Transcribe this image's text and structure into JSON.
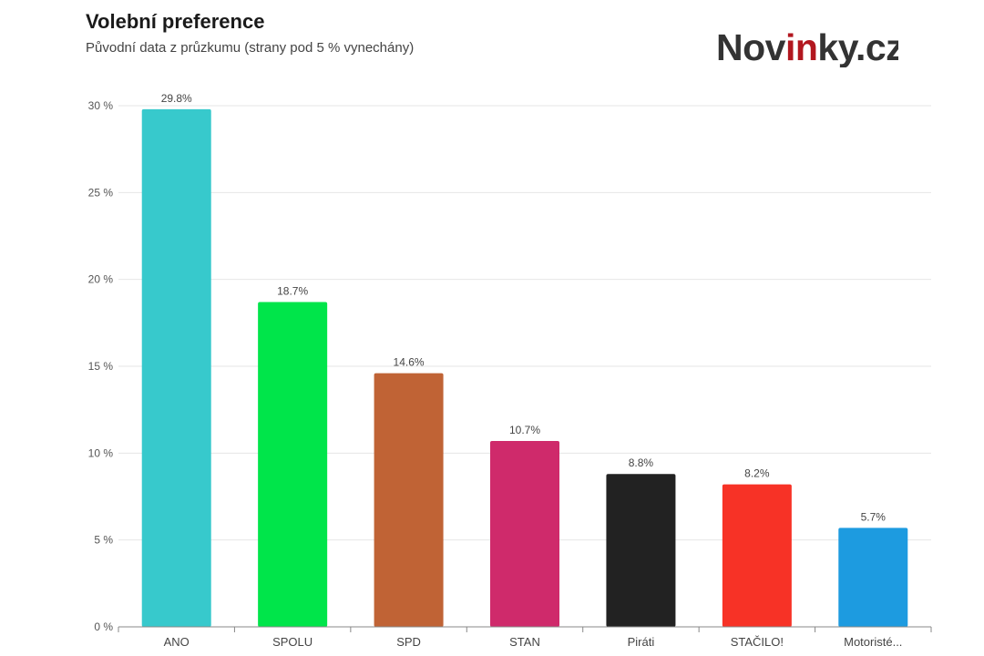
{
  "header": {
    "title": "Volební preference",
    "subtitle": "Původní data z průzkumu (strany pod 5 % vynechány)",
    "logo_text": "Novinky.cz"
  },
  "chart_data": {
    "type": "bar",
    "categories": [
      "ANO",
      "SPOLU",
      "SPD",
      "STAN",
      "Piráti",
      "STAČILO!",
      "Motoristé..."
    ],
    "values": [
      29.8,
      18.7,
      14.6,
      10.7,
      8.8,
      8.2,
      5.7
    ],
    "data_labels": [
      "29.8%",
      "18.7%",
      "14.6%",
      "10.7%",
      "8.8%",
      "8.2%",
      "5.7%"
    ],
    "colors": [
      "#37c9cc",
      "#00e54a",
      "#c06335",
      "#cf2a6b",
      "#222222",
      "#f73226",
      "#1d9be0"
    ],
    "ylim": [
      0,
      30
    ],
    "yticks": [
      0,
      5,
      10,
      15,
      20,
      25,
      30
    ],
    "ytick_labels": [
      "0 %",
      "5 %",
      "10 %",
      "15 %",
      "20 %",
      "25 %",
      "30 %"
    ],
    "title": "Volební preference",
    "subtitle": "Původní data z průzkumu (strany pod 5 % vynechány)",
    "xlabel": "",
    "ylabel": "",
    "grid": true,
    "legend": "none"
  }
}
